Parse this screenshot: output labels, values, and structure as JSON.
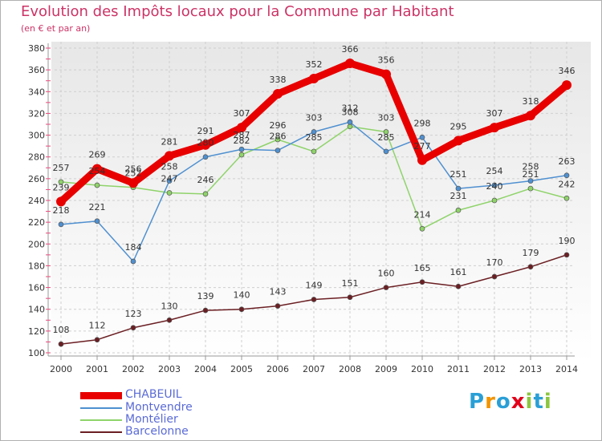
{
  "header": {
    "title": "Evolution des Impôts locaux pour la Commune par Habitant",
    "subtitle": "(en € et par an)"
  },
  "chart_data": {
    "type": "line",
    "title": "Evolution des Impôts locaux pour la Commune par Habitant",
    "subtitle": "(en € et par an)",
    "xlabel": "",
    "ylabel": "",
    "ylim": [
      100,
      380
    ],
    "yticks": [
      100,
      120,
      140,
      160,
      180,
      200,
      220,
      240,
      260,
      280,
      300,
      320,
      340,
      360,
      380
    ],
    "grid": true,
    "legend_position": "bottom-left",
    "x": [
      "2000",
      "2001",
      "2002",
      "2003",
      "2004",
      "2005",
      "2006",
      "2007",
      "2008",
      "2009",
      "2010",
      "2011",
      "2012",
      "2013",
      "2014"
    ],
    "series": [
      {
        "name": "CHABEUIL",
        "color": "#e80000",
        "values": [
          239,
          269,
          256,
          281,
          291,
          307,
          338,
          352,
          366,
          356,
          277,
          295,
          307,
          318,
          346
        ]
      },
      {
        "name": "Montvendre",
        "color": "#4f90d0",
        "values": [
          218,
          221,
          184,
          258,
          280,
          287,
          286,
          303,
          312,
          285,
          298,
          251,
          254,
          258,
          263
        ]
      },
      {
        "name": "Montélier",
        "color": "#8fd36a",
        "values": [
          257,
          254,
          252,
          247,
          246,
          282,
          296,
          285,
          308,
          303,
          214,
          231,
          240,
          251,
          242
        ]
      },
      {
        "name": "Barcelonne",
        "color": "#6b1f23",
        "values": [
          108,
          112,
          123,
          130,
          139,
          140,
          143,
          149,
          151,
          160,
          165,
          161,
          170,
          179,
          190
        ]
      }
    ]
  },
  "legend": {
    "items": [
      {
        "label": "CHABEUIL",
        "color": "#e80000"
      },
      {
        "label": "Montvendre",
        "color": "#4f90d0"
      },
      {
        "label": "Montélier",
        "color": "#8fd36a"
      },
      {
        "label": "Barcelonne",
        "color": "#6b1f23"
      }
    ]
  },
  "logo": {
    "letters": [
      "P",
      "r",
      "o",
      "x",
      "i",
      "t",
      "i"
    ],
    "colors": [
      "#2a9fd6",
      "#f29400",
      "#2a9fd6",
      "#e2001a",
      "#8cc63f",
      "#2a9fd6",
      "#8cc63f"
    ]
  }
}
